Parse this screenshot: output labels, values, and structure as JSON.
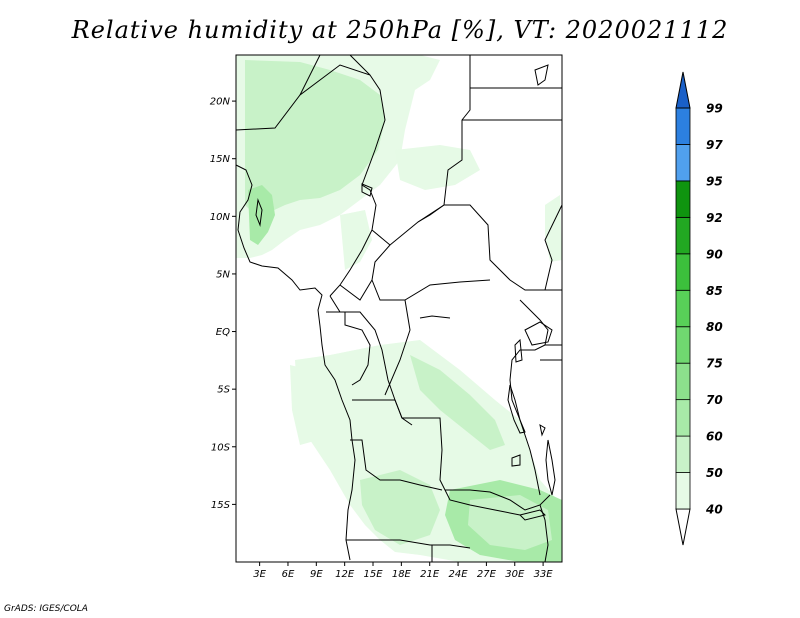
{
  "title": "Relative humidity at 250hPa [%], VT: 2020021112",
  "credit": "GrADS: IGES/COLA",
  "map": {
    "lat_range": [
      -20,
      24
    ],
    "lon_range": [
      0.5,
      35
    ],
    "lat_ticks": [
      {
        "value": 20,
        "label": "20N"
      },
      {
        "value": 15,
        "label": "15N"
      },
      {
        "value": 10,
        "label": "10N"
      },
      {
        "value": 5,
        "label": "5N"
      },
      {
        "value": 0,
        "label": "EQ"
      },
      {
        "value": -5,
        "label": "5S"
      },
      {
        "value": -10,
        "label": "10S"
      },
      {
        "value": -15,
        "label": "15S"
      }
    ],
    "lon_ticks": [
      {
        "value": 3,
        "label": "3E"
      },
      {
        "value": 6,
        "label": "6E"
      },
      {
        "value": 9,
        "label": "9E"
      },
      {
        "value": 12,
        "label": "12E"
      },
      {
        "value": 15,
        "label": "15E"
      },
      {
        "value": 18,
        "label": "18E"
      },
      {
        "value": 21,
        "label": "21E"
      },
      {
        "value": 24,
        "label": "24E"
      },
      {
        "value": 27,
        "label": "27E"
      },
      {
        "value": 30,
        "label": "30E"
      },
      {
        "value": 33,
        "label": "33E"
      }
    ]
  },
  "colorbar": {
    "levels": [
      "40",
      "50",
      "60",
      "70",
      "75",
      "80",
      "85",
      "90",
      "92",
      "95",
      "97",
      "99"
    ],
    "colors": [
      "#e6fae6",
      "#c8f2c8",
      "#a8eaa8",
      "#8ce08c",
      "#70d870",
      "#58d058",
      "#3cc03c",
      "#22a822",
      "#0f940f",
      "#50a0ee",
      "#2c80e0",
      "#1a60c8"
    ],
    "below_color": "#ffffff",
    "above_color": "#1a60c8"
  },
  "humidity_colors": {
    "light": "#e6fae6",
    "mid": "#c8f2c8",
    "strong": "#a8eaa8"
  }
}
